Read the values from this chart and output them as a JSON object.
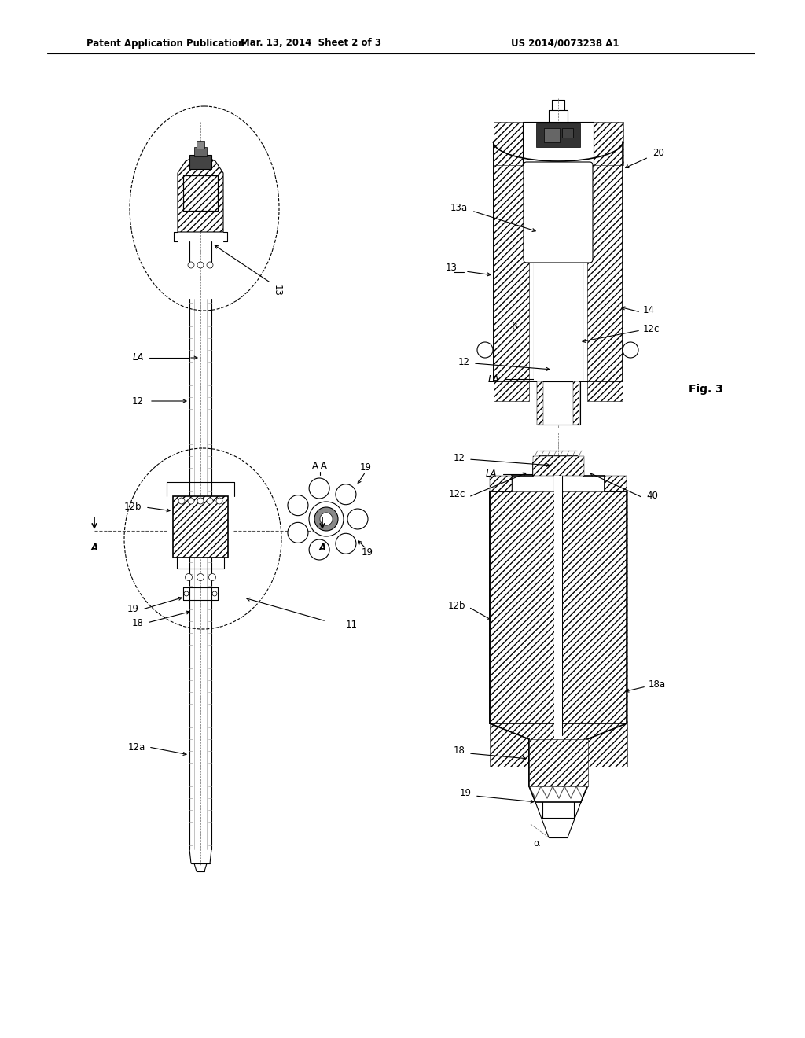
{
  "bg_color": "#ffffff",
  "header_left": "Patent Application Publication",
  "header_mid": "Mar. 13, 2014  Sheet 2 of 3",
  "header_right": "US 2014/0073238 A1",
  "line_color": "#000000",
  "gray_color": "#888888",
  "dash_color": "#666666"
}
